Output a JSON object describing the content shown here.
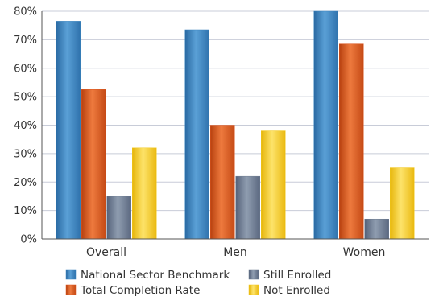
{
  "chart_data": {
    "type": "bar",
    "categories": [
      "Overall",
      "Men",
      "Women"
    ],
    "series": [
      {
        "name": "National Sector Benchmark",
        "values": [
          76.5,
          73.5,
          80
        ],
        "color": "#3a84bf"
      },
      {
        "name": "Total Completion Rate",
        "values": [
          52.5,
          40,
          68.5
        ],
        "color": "#d9541e"
      },
      {
        "name": "Still Enrolled",
        "values": [
          15,
          22,
          7
        ],
        "color": "#6b7a8f"
      },
      {
        "name": "Not Enrolled",
        "values": [
          32,
          38,
          25
        ],
        "color": "#f2c81f"
      }
    ],
    "y_ticks": [
      "0%",
      "10%",
      "20%",
      "30%",
      "40%",
      "50%",
      "60%",
      "70%",
      "80%"
    ],
    "ylim": [
      0,
      80
    ],
    "grid": true,
    "legend_position": "bottom"
  }
}
